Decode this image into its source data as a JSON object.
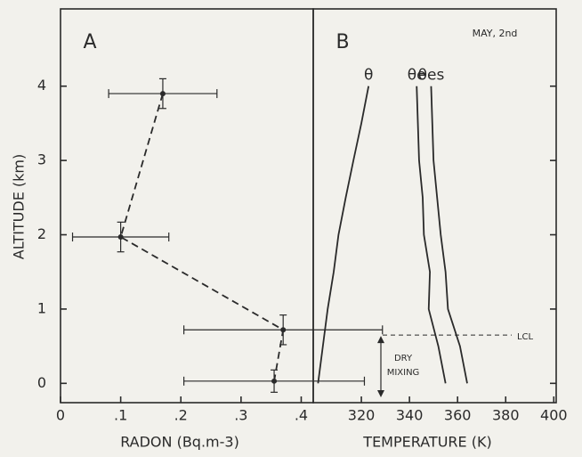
{
  "chart_data": [
    {
      "type": "errorbar",
      "panel": "A",
      "x_label": "RADON (Bq.m-3)",
      "y_label": "ALTITUDE (km)",
      "x": [
        0.17,
        0.1,
        0.37,
        0.355
      ],
      "values": [
        3.9,
        1.97,
        0.72,
        0.03
      ],
      "xerr": [
        0.09,
        0.08,
        0.165,
        0.15
      ],
      "yerr": [
        0.2,
        0.2,
        0.2,
        0.15
      ],
      "line_style": "dashed",
      "color": "#2a2a2a",
      "xlim": [
        0,
        0.42
      ],
      "xticks": [
        0,
        {
          "value": 0.1,
          "label": ".1"
        },
        {
          "value": 0.2,
          "label": ".2"
        },
        {
          "value": 0.3,
          "label": ".3"
        },
        {
          "value": 0.4,
          "label": ".4"
        }
      ],
      "ylim": [
        -0.26,
        5.04
      ],
      "yticks": [
        0,
        1,
        2,
        3,
        4
      ]
    },
    {
      "type": "line",
      "panel": "B",
      "annotation": "MAY, 2nd",
      "x_label": "TEMPERATURE (K)",
      "y": [
        0,
        0.5,
        1,
        1.5,
        2,
        2.5,
        3,
        3.5,
        4
      ],
      "series": [
        {
          "name": "θ",
          "color": "#2a2a2a",
          "values": [
            302,
            304,
            306,
            308.5,
            310.5,
            313.5,
            316.7,
            320,
            323
          ]
        },
        {
          "name": "θe",
          "color": "#2a2a2a",
          "values": [
            355,
            352,
            348,
            348.5,
            346,
            345.5,
            344,
            343.5,
            343
          ]
        },
        {
          "name": "θes",
          "color": "#2a2a2a",
          "values": [
            364,
            361,
            356,
            355,
            353,
            351.5,
            350,
            349.5,
            349
          ]
        }
      ],
      "lcl_label": "LCL",
      "lcl_altitude": 0.65,
      "mixing_label": [
        "DRY",
        "MIXING"
      ],
      "xlim": [
        300,
        401
      ],
      "xticks": [
        320,
        340,
        360,
        380,
        400
      ],
      "ylim": [
        -0.26,
        5.04
      ],
      "yticks": [
        0,
        1,
        2,
        3,
        4
      ]
    }
  ]
}
